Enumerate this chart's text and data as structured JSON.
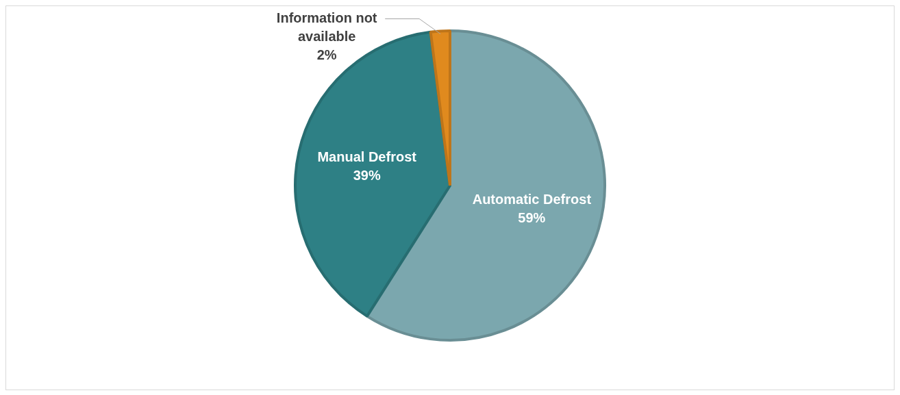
{
  "chart_data": {
    "type": "pie",
    "categories": [
      "Automatic Defrost",
      "Manual Defrost",
      "Information not available"
    ],
    "values": [
      59,
      39,
      2
    ],
    "colors": [
      "#7ba7ae",
      "#2e8085",
      "#e08a1e"
    ],
    "value_labels": [
      "59%",
      "39%",
      "2%"
    ],
    "legend": false
  }
}
